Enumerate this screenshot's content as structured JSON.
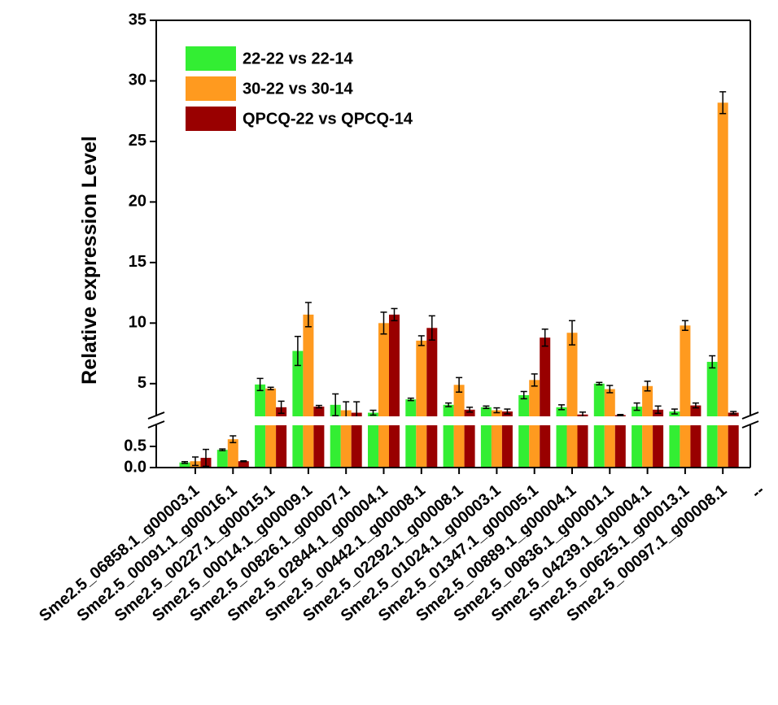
{
  "chart_data": {
    "type": "bar",
    "y_label": "Relative expression Level",
    "categories": [
      "Sme2.5_06858.1_g00003.1",
      "Sme2.5_00091.1_g00016.1",
      "Sme2.5_00227.1_g00015.1",
      "Sme2.5_00014.1_g00009.1",
      "Sme2.5_00826.1_g00007.1",
      "Sme2.5_02844.1_g00004.1",
      "Sme2.5_00442.1_g00008.1",
      "Sme2.5_02292.1_g00008.1",
      "Sme2.5_01024.1_g00003.1",
      "Sme2.5_01347.1_g00005.1",
      "Sme2.5_00889.1_g00004.1",
      "Sme2.5_00836.1_g00001.1",
      "Sme2.5_04239.1_g00004.1",
      "Sme2.5_00625.1_g00013.1",
      "Sme2.5_00097.1_g00008.1",
      "--"
    ],
    "series": [
      {
        "name": "22-22 vs 22-14",
        "color": "#33ee33",
        "values": [
          0.12,
          0.42,
          4.93,
          7.7,
          3.25,
          2.6,
          3.7,
          3.25,
          3.05,
          4.05,
          3.05,
          5.0,
          3.1,
          2.7,
          6.8,
          null
        ],
        "errors": [
          0.02,
          0.02,
          0.5,
          1.2,
          0.9,
          0.2,
          0.1,
          0.15,
          0.1,
          0.3,
          0.2,
          0.1,
          0.3,
          0.2,
          0.5,
          null
        ]
      },
      {
        "name": "30-22 vs 30-14",
        "color": "#ff9a1f",
        "values": [
          0.15,
          0.67,
          4.6,
          10.7,
          2.8,
          10.0,
          8.55,
          4.9,
          2.8,
          5.3,
          9.2,
          4.55,
          4.8,
          9.8,
          28.2,
          null
        ],
        "errors": [
          0.1,
          0.08,
          0.1,
          1.0,
          0.7,
          0.9,
          0.4,
          0.6,
          0.2,
          0.5,
          1.0,
          0.3,
          0.4,
          0.4,
          0.9,
          null
        ]
      },
      {
        "name": "QPCQ-22 vs QPCQ-14",
        "color": "#990000",
        "values": [
          0.23,
          0.15,
          3.05,
          3.1,
          2.6,
          10.7,
          9.6,
          2.85,
          2.7,
          8.8,
          2.45,
          2.4,
          2.85,
          3.2,
          2.6,
          null
        ],
        "errors": [
          0.2,
          0.01,
          0.5,
          0.1,
          0.9,
          0.5,
          1.0,
          0.2,
          0.2,
          0.7,
          0.2,
          0.05,
          0.3,
          0.2,
          0.1,
          null
        ]
      }
    ],
    "ylim": [
      0,
      35
    ],
    "ybreak": [
      1,
      2.3
    ],
    "yticks": [
      {
        "value": 0,
        "label": "0.0"
      },
      0.5,
      5,
      10,
      15,
      20,
      25,
      30,
      35
    ],
    "legend": "top-left"
  }
}
